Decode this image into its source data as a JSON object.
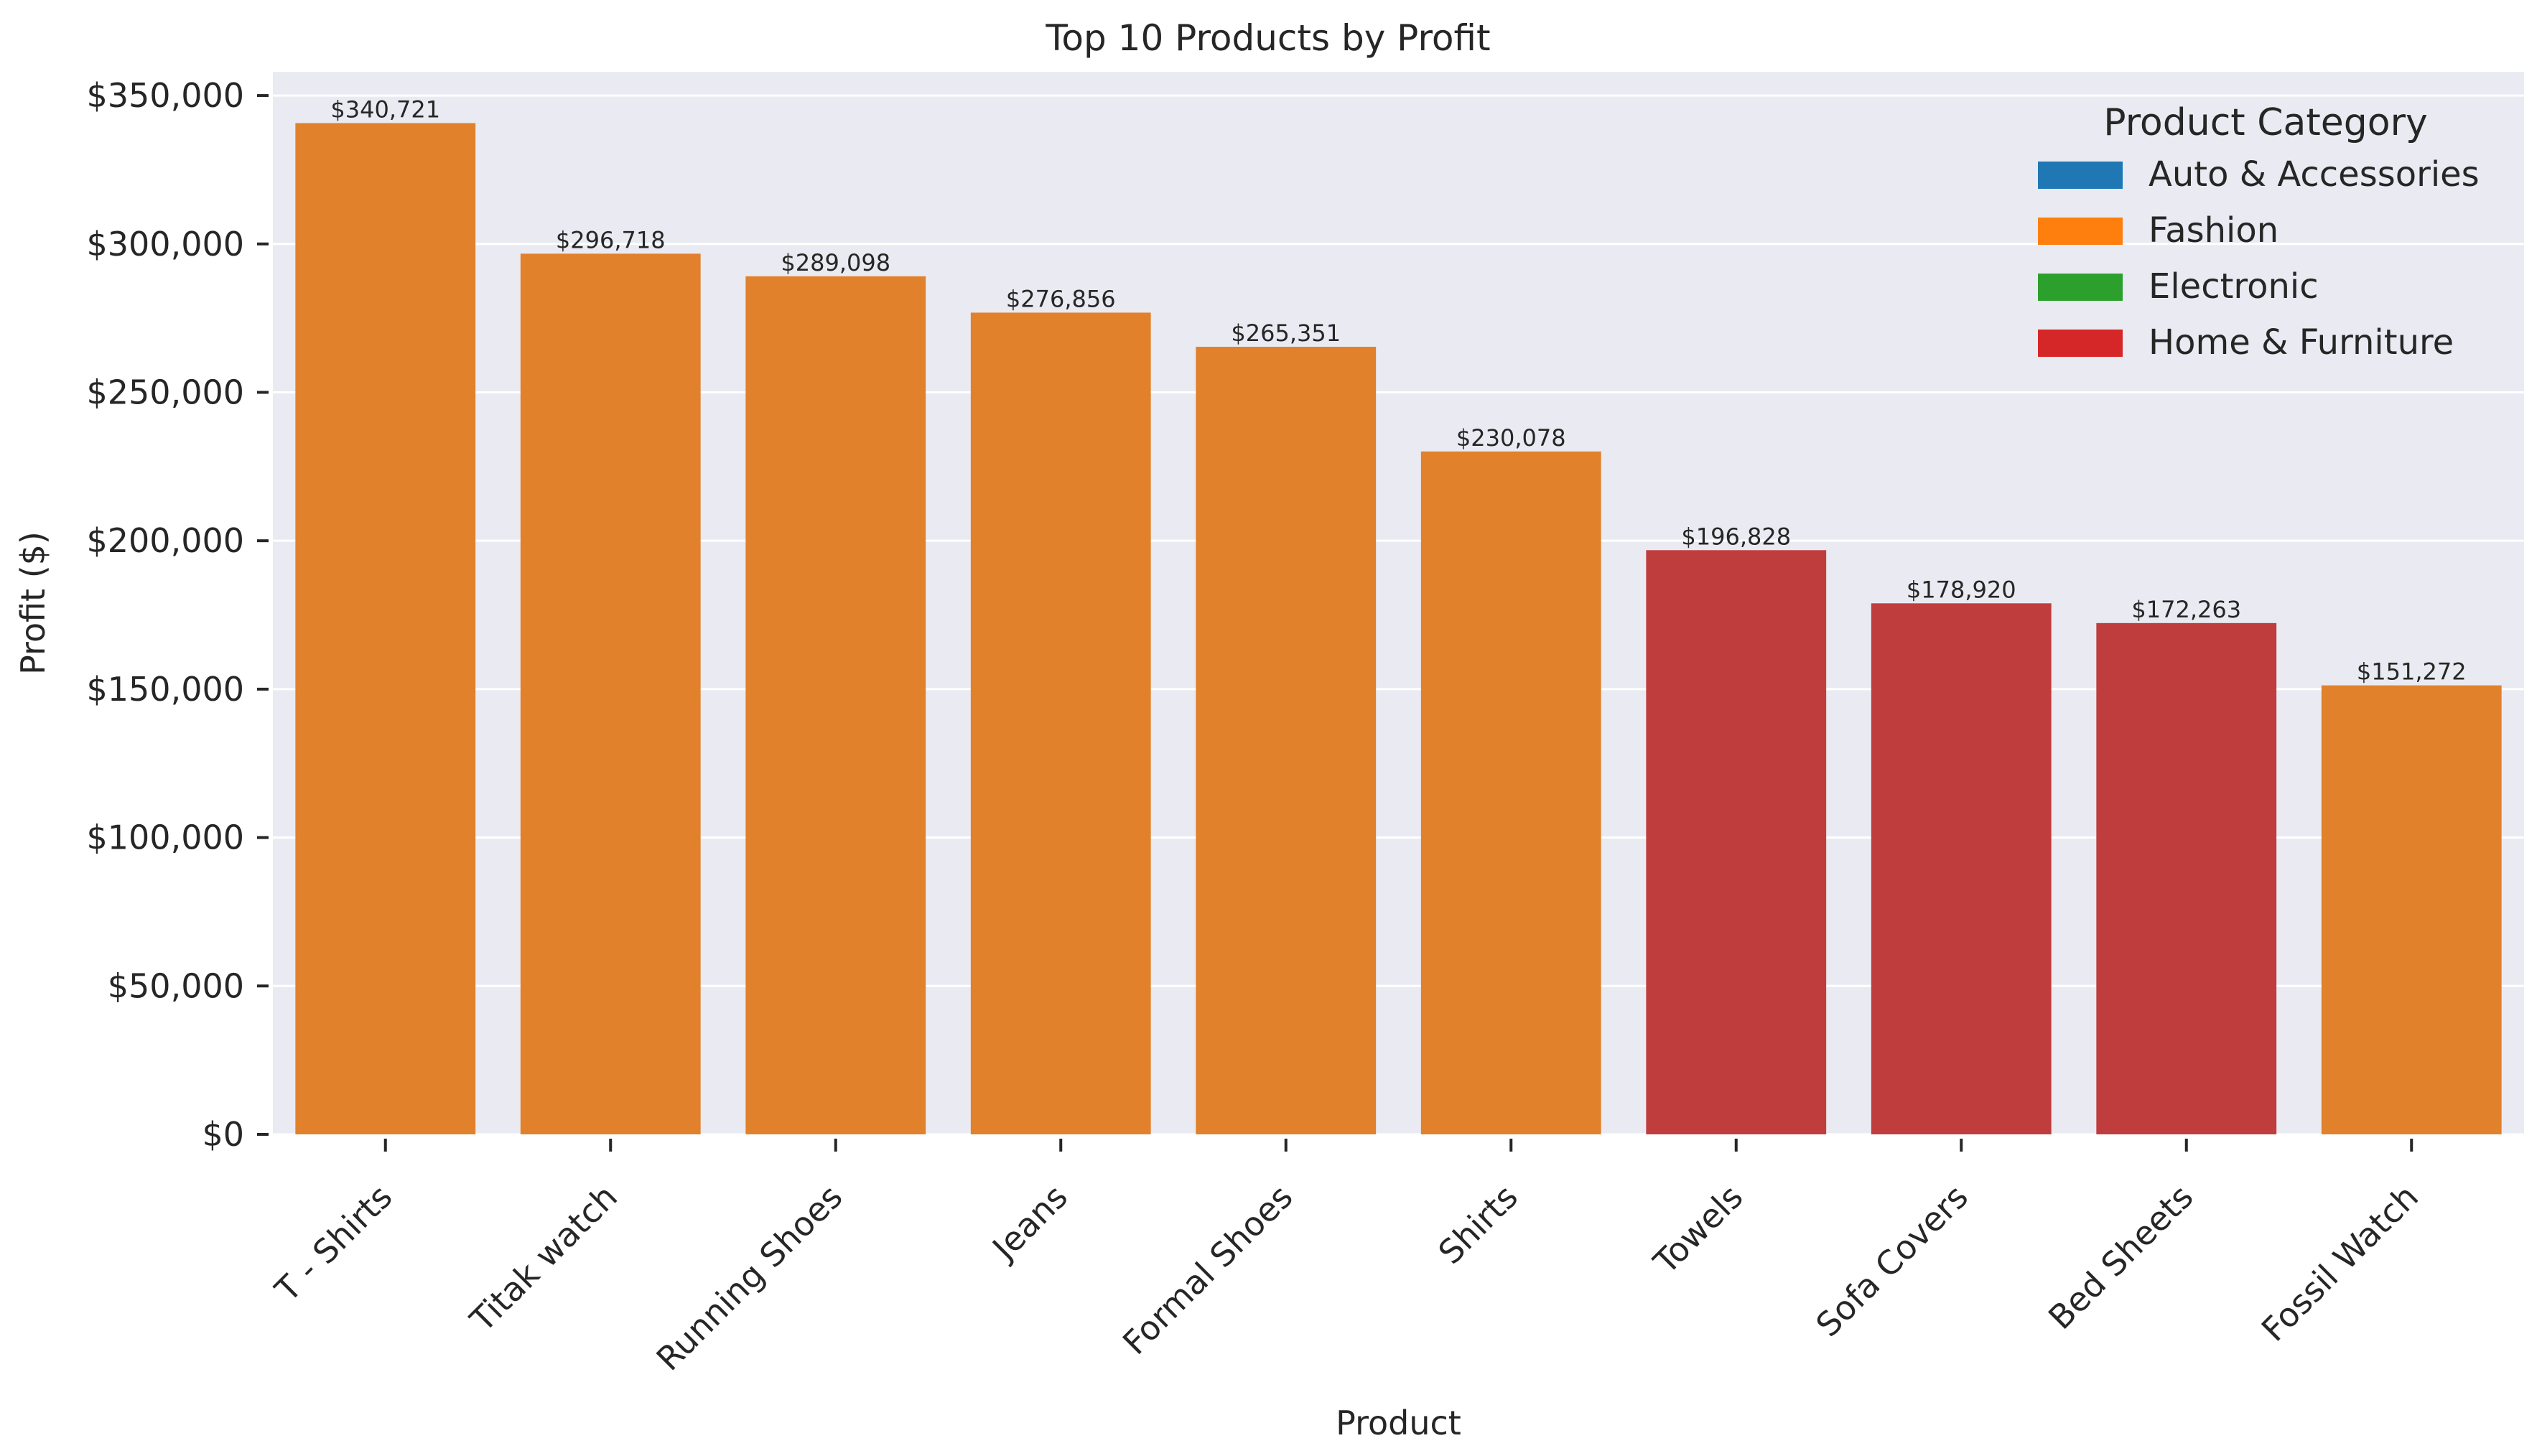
{
  "chart_data": {
    "type": "bar",
    "title": "Top 10 Products by Profit",
    "xlabel": "Product",
    "ylabel": "Profit ($)",
    "ylim": [
      0,
      358000
    ],
    "yticks": [
      0,
      50000,
      100000,
      150000,
      200000,
      250000,
      300000,
      350000
    ],
    "ytick_labels": [
      "$0",
      "$50,000",
      "$100,000",
      "$150,000",
      "$200,000",
      "$250,000",
      "$300,000",
      "$350,000"
    ],
    "grid": true,
    "legend": {
      "title": "Product Category",
      "placement": "top-right",
      "entries": [
        {
          "label": "Auto & Accessories",
          "color": "#1f77b4"
        },
        {
          "label": "Fashion",
          "color": "#ff7f0e"
        },
        {
          "label": "Electronic",
          "color": "#2ca02c"
        },
        {
          "label": "Home & Furniture",
          "color": "#d62728"
        }
      ]
    },
    "categories": [
      "T - Shirts",
      "Titak watch",
      "Running Shoes",
      "Jeans",
      "Formal Shoes",
      "Shirts",
      "Towels",
      "Sofa Covers",
      "Bed Sheets",
      "Fossil Watch"
    ],
    "values": [
      340721,
      296718,
      289098,
      276856,
      265351,
      230078,
      196828,
      178920,
      172263,
      151272
    ],
    "value_labels": [
      "$340,721",
      "$296,718",
      "$289,098",
      "$276,856",
      "$265,351",
      "$230,078",
      "$196,828",
      "$178,920",
      "$172,263",
      "$151,272"
    ],
    "bar_categories": [
      "Fashion",
      "Fashion",
      "Fashion",
      "Fashion",
      "Fashion",
      "Fashion",
      "Home & Furniture",
      "Home & Furniture",
      "Home & Furniture",
      "Fashion"
    ],
    "bar_colors": {
      "Fashion": "#e1812c",
      "Home & Furniture": "#c03d3e"
    },
    "background": "#eaeaf2"
  }
}
